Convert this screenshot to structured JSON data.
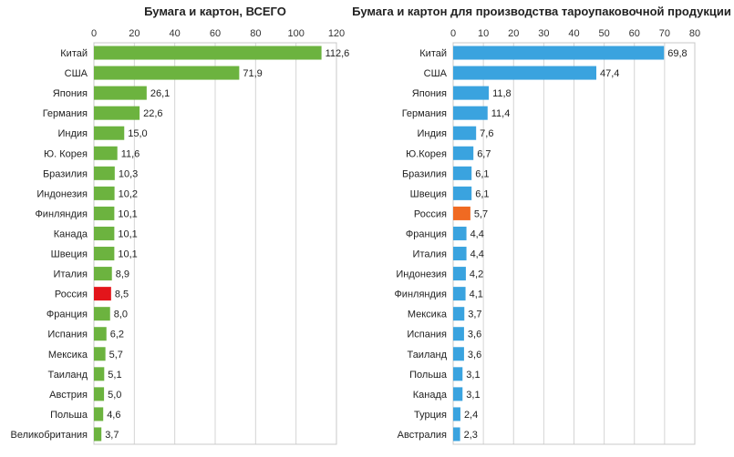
{
  "chart_data": [
    {
      "type": "bar",
      "orientation": "horizontal",
      "title": "Бумага и картон, ВСЕГО",
      "xlim": [
        0,
        120
      ],
      "xticks": [
        "0",
        "20",
        "40",
        "60",
        "80",
        "100",
        "120"
      ],
      "grid": true,
      "categories": [
        "Китай",
        "США",
        "Япония",
        "Германия",
        "Индия",
        "Ю. Корея",
        "Бразилия",
        "Индонезия",
        "Финляндия",
        "Канада",
        "Швеция",
        "Италия",
        "Россия",
        "Франция",
        "Испания",
        "Мексика",
        "Таиланд",
        "Австрия",
        "Польша",
        "Великобритания"
      ],
      "values": [
        112.6,
        71.9,
        26.1,
        22.6,
        15.0,
        11.6,
        10.3,
        10.2,
        10.1,
        10.1,
        10.1,
        8.9,
        8.5,
        8.0,
        6.2,
        5.7,
        5.1,
        5.0,
        4.6,
        3.7
      ],
      "value_labels": [
        "112,6",
        "71,9",
        "26,1",
        "22,6",
        "15,0",
        "11,6",
        "10,3",
        "10,2",
        "10,1",
        "10,1",
        "10,1",
        "8,9",
        "8,5",
        "8,0",
        "6,2",
        "5,7",
        "5,1",
        "5,0",
        "4,6",
        "3,7"
      ],
      "bar_color": "#6cb33f",
      "highlight_category": "Россия",
      "highlight_color": "#e3151b"
    },
    {
      "type": "bar",
      "orientation": "horizontal",
      "title": "Бумага и картон для производства тароупаковочной продукции",
      "xlim": [
        0,
        80
      ],
      "xticks": [
        "0",
        "10",
        "20",
        "30",
        "40",
        "50",
        "60",
        "70",
        "80"
      ],
      "grid": true,
      "categories": [
        "Китай",
        "США",
        "Япония",
        "Германия",
        "Индия",
        "Ю.Корея",
        "Бразилия",
        "Швеция",
        "Россия",
        "Франция",
        "Италия",
        "Индонезия",
        "Финляндия",
        "Мексика",
        "Испания",
        "Таиланд",
        "Польша",
        "Канада",
        "Турция",
        "Австралия"
      ],
      "values": [
        69.8,
        47.4,
        11.8,
        11.4,
        7.6,
        6.7,
        6.1,
        6.1,
        5.7,
        4.4,
        4.4,
        4.2,
        4.1,
        3.7,
        3.6,
        3.6,
        3.1,
        3.1,
        2.4,
        2.3
      ],
      "value_labels": [
        "69,8",
        "47,4",
        "11,8",
        "11,4",
        "7,6",
        "6,7",
        "6,1",
        "6,1",
        "5,7",
        "4,4",
        "4,4",
        "4,2",
        "4,1",
        "3,7",
        "3,6",
        "3,6",
        "3,1",
        "3,1",
        "2,4",
        "2,3"
      ],
      "bar_color": "#3aa3df",
      "highlight_category": "Россия",
      "highlight_color": "#f06a22"
    }
  ]
}
